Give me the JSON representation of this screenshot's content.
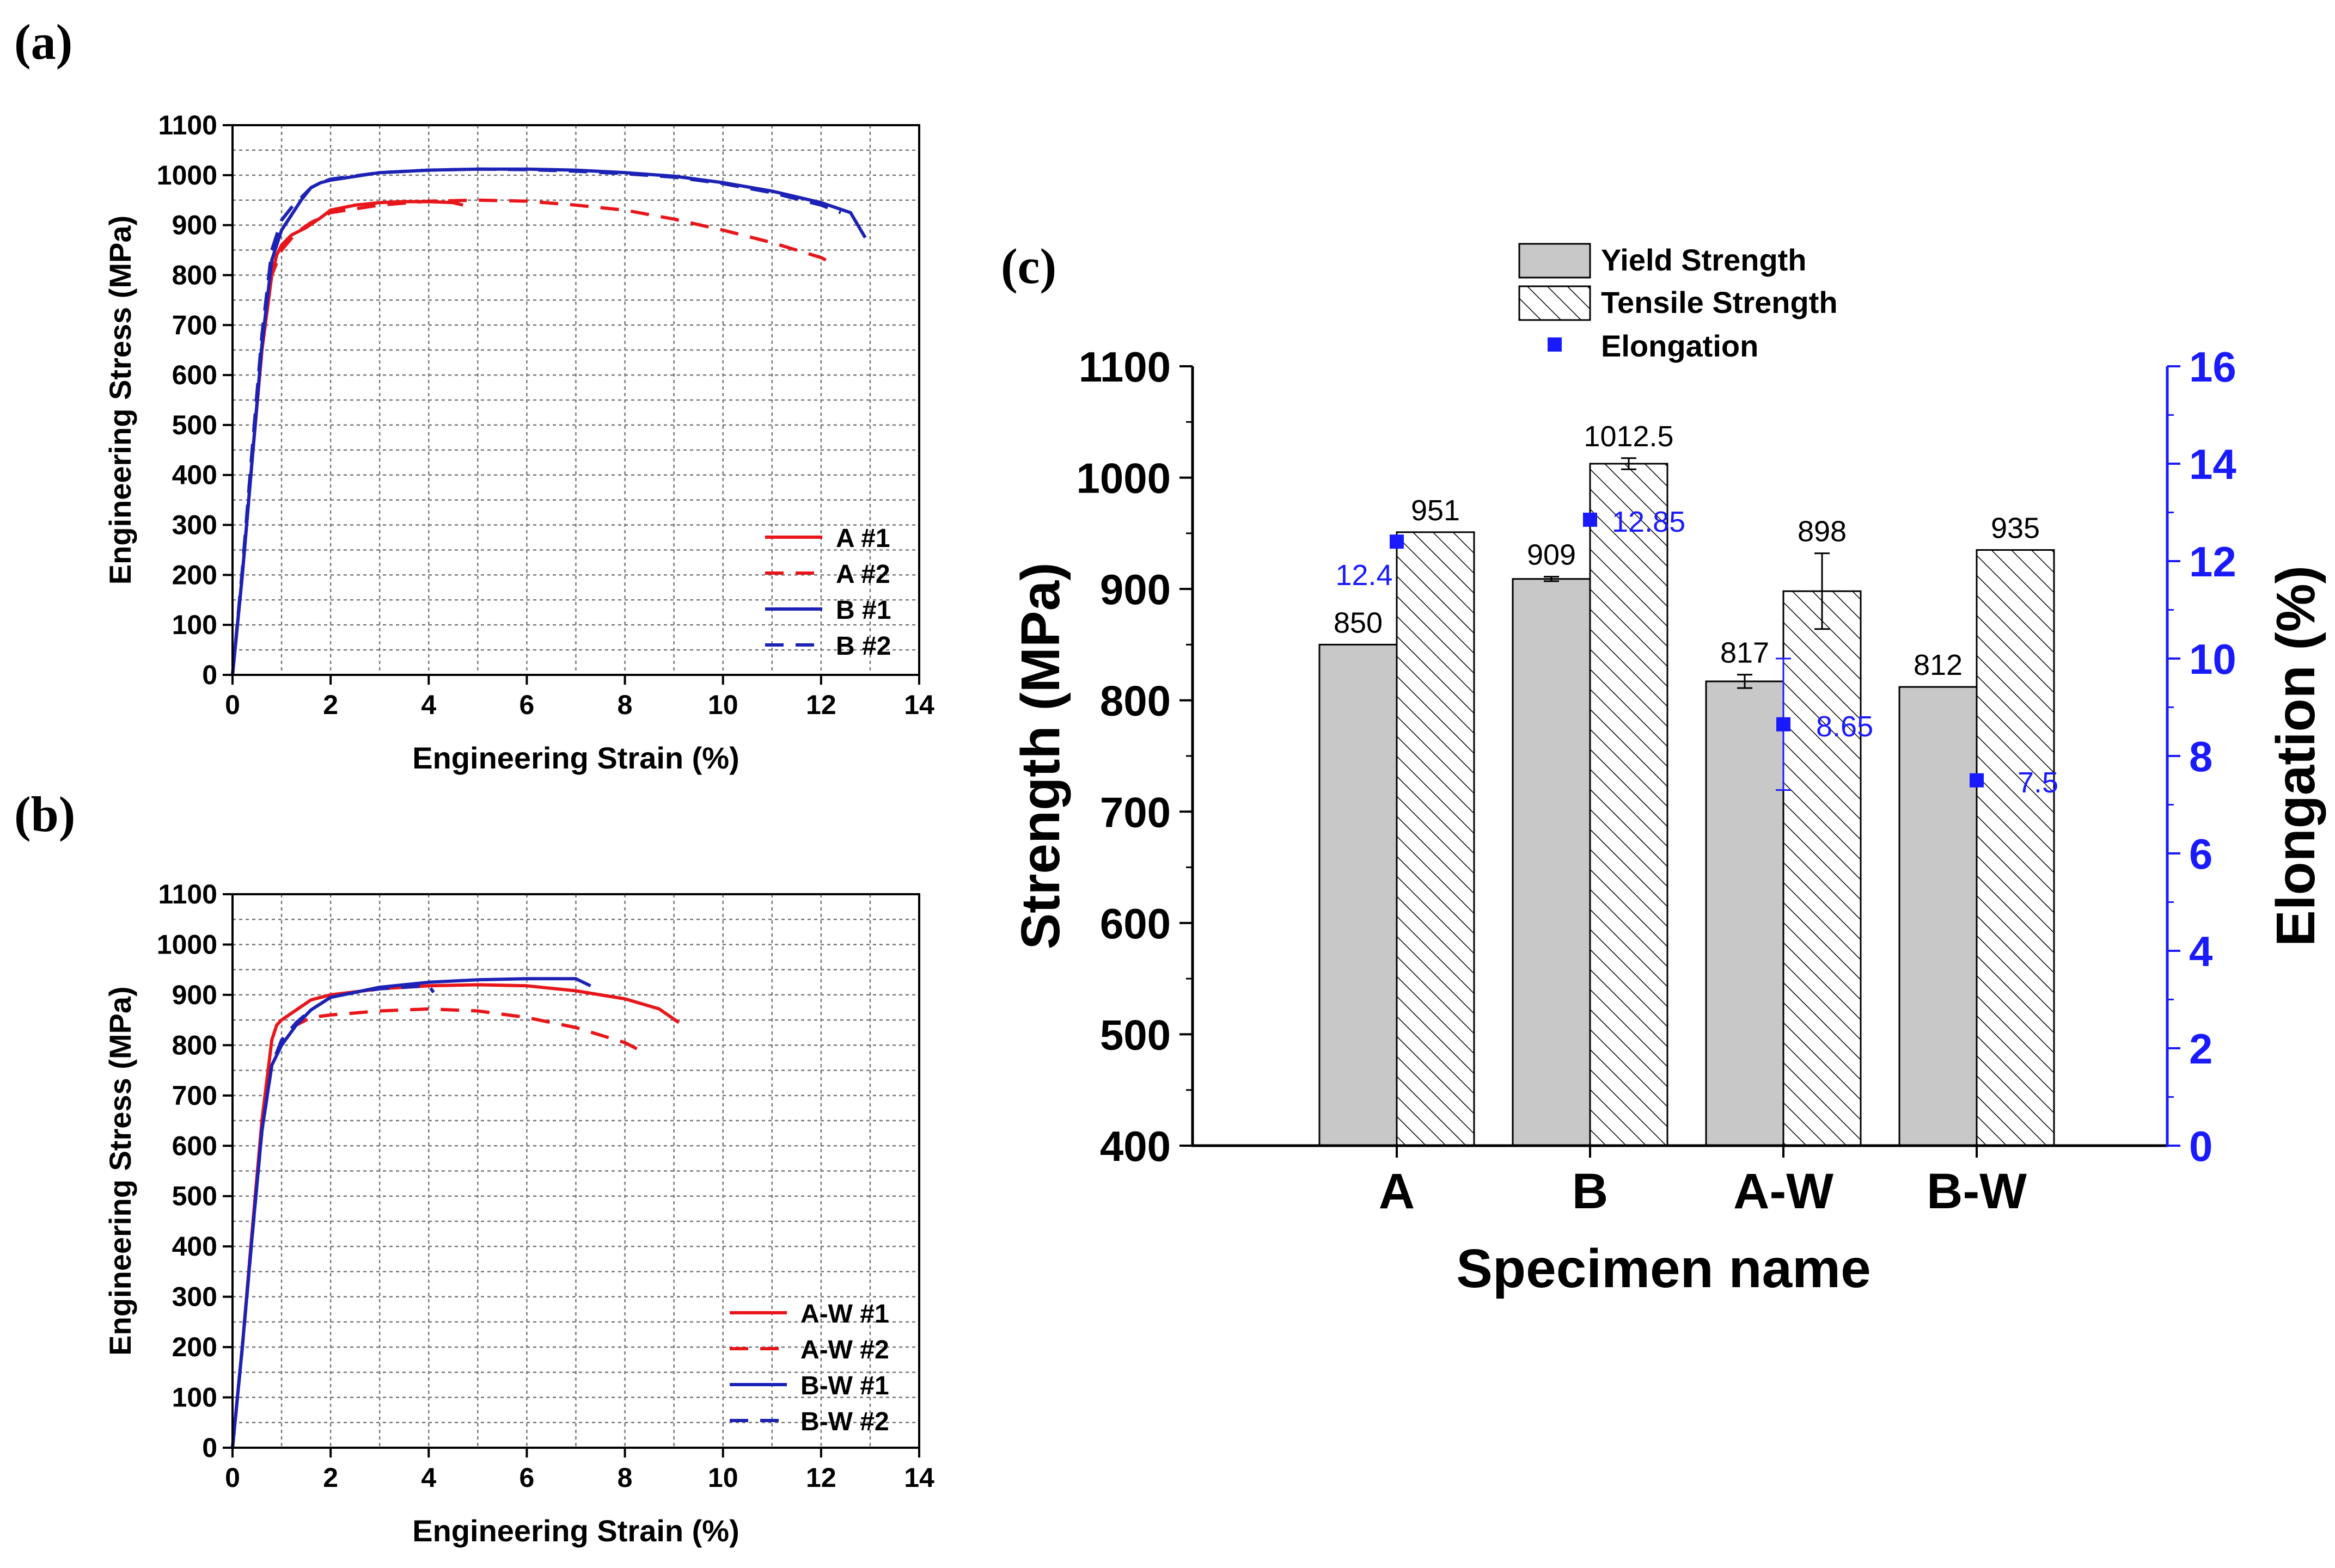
{
  "colors": {
    "red": "#e8161b",
    "blue": "#1c22b5",
    "gray_bar": "#c8c8c8",
    "elong": "#1a1aff",
    "elong_axis": "#1a1aff"
  },
  "chart_data": [
    {
      "id": "a",
      "panel_label": "(a)",
      "type": "line",
      "xlabel": "Engineering Strain (%)",
      "ylabel": "Engineering Stress (MPa)",
      "xlim": [
        0,
        14
      ],
      "ylim": [
        0,
        1100
      ],
      "xticks": [
        0,
        2,
        4,
        6,
        8,
        10,
        12,
        14
      ],
      "yticks": [
        0,
        100,
        200,
        300,
        400,
        500,
        600,
        700,
        800,
        900,
        1000,
        1100
      ],
      "grid": true,
      "legend_position": "bottom-right",
      "series": [
        {
          "name": "A #1",
          "color": "red",
          "dash": false,
          "x": [
            0,
            0.2,
            0.4,
            0.6,
            0.8,
            0.9,
            1.0,
            1.2,
            1.5,
            1.8,
            2.0,
            2.5,
            3.0,
            3.5,
            4.0,
            4.5,
            4.7
          ],
          "y": [
            0,
            200,
            430,
            650,
            800,
            840,
            860,
            880,
            895,
            915,
            930,
            940,
            945,
            947,
            947,
            945,
            940
          ]
        },
        {
          "name": "A #2",
          "color": "red",
          "dash": true,
          "x": [
            0,
            0.2,
            0.4,
            0.6,
            0.8,
            1.0,
            1.3,
            1.6,
            2.0,
            3.0,
            4.0,
            5.0,
            6.0,
            7.0,
            8.0,
            9.0,
            10.0,
            11.0,
            12.0,
            12.3
          ],
          "y": [
            0,
            200,
            430,
            650,
            800,
            850,
            885,
            905,
            925,
            940,
            948,
            950,
            948,
            940,
            930,
            912,
            890,
            865,
            835,
            820
          ]
        },
        {
          "name": "B #1",
          "color": "blue",
          "dash": false,
          "x": [
            0,
            0.2,
            0.4,
            0.6,
            0.8,
            1.0,
            1.2,
            1.4,
            1.6,
            1.8,
            2.0,
            3.0,
            4.0,
            5.0,
            6.0,
            7.0,
            8.0,
            9.0,
            10.0,
            11.0,
            12.0,
            12.6,
            12.9
          ],
          "y": [
            0,
            200,
            430,
            660,
            830,
            890,
            920,
            950,
            975,
            985,
            990,
            1005,
            1010,
            1012,
            1012,
            1010,
            1005,
            998,
            985,
            968,
            945,
            925,
            875
          ]
        },
        {
          "name": "B #2",
          "color": "blue",
          "dash": true,
          "x": [
            0,
            0.2,
            0.4,
            0.6,
            0.8,
            1.0,
            1.2,
            1.4,
            1.6,
            1.8,
            2.0,
            3.0,
            4.0,
            5.0,
            6.0,
            7.0,
            8.0,
            9.0,
            10.0,
            11.0,
            12.0,
            12.4
          ],
          "y": [
            0,
            210,
            450,
            680,
            850,
            910,
            935,
            955,
            975,
            985,
            992,
            1005,
            1010,
            1012,
            1011,
            1008,
            1003,
            996,
            983,
            965,
            940,
            925
          ]
        }
      ]
    },
    {
      "id": "b",
      "panel_label": "(b)",
      "type": "line",
      "xlabel": "Engineering Strain (%)",
      "ylabel": "Engineering Stress (MPa)",
      "xlim": [
        0,
        14
      ],
      "ylim": [
        0,
        1100
      ],
      "xticks": [
        0,
        2,
        4,
        6,
        8,
        10,
        12,
        14
      ],
      "yticks": [
        0,
        100,
        200,
        300,
        400,
        500,
        600,
        700,
        800,
        900,
        1000,
        1100
      ],
      "grid": true,
      "legend_position": "bottom-right",
      "series": [
        {
          "name": "A-W #1",
          "color": "red",
          "dash": false,
          "x": [
            0,
            0.2,
            0.4,
            0.6,
            0.8,
            0.9,
            1.0,
            1.3,
            1.6,
            2.0,
            3.0,
            4.0,
            5.0,
            6.0,
            7.0,
            8.0,
            8.7,
            9.1
          ],
          "y": [
            0,
            200,
            430,
            650,
            810,
            840,
            850,
            870,
            890,
            900,
            912,
            918,
            920,
            918,
            908,
            892,
            872,
            845
          ]
        },
        {
          "name": "A-W #2",
          "color": "red",
          "dash": true,
          "x": [
            0,
            0.2,
            0.4,
            0.6,
            0.8,
            1.0,
            1.3,
            1.6,
            2.0,
            3.0,
            4.0,
            5.0,
            6.0,
            7.0,
            8.0,
            8.3
          ],
          "y": [
            0,
            200,
            420,
            630,
            760,
            810,
            840,
            855,
            860,
            868,
            872,
            868,
            855,
            835,
            805,
            790
          ]
        },
        {
          "name": "B-W #1",
          "color": "blue",
          "dash": false,
          "x": [
            0,
            0.2,
            0.4,
            0.6,
            0.8,
            1.0,
            1.3,
            1.6,
            2.0,
            3.0,
            4.0,
            5.0,
            6.0,
            7.0,
            7.3
          ],
          "y": [
            0,
            200,
            420,
            630,
            760,
            800,
            840,
            870,
            895,
            915,
            925,
            930,
            932,
            932,
            918
          ]
        },
        {
          "name": "B-W #2",
          "color": "blue",
          "dash": true,
          "x": [
            0,
            0.2,
            0.4,
            0.6,
            0.8,
            1.0,
            1.3,
            1.6,
            2.0,
            2.5,
            3.0,
            3.5,
            4.0,
            4.1
          ],
          "y": [
            0,
            200,
            420,
            630,
            760,
            810,
            845,
            870,
            895,
            905,
            912,
            915,
            918,
            905
          ]
        }
      ]
    },
    {
      "id": "c",
      "panel_label": "(c)",
      "type": "bar",
      "categories": [
        "A",
        "B",
        "A-W",
        "B-W"
      ],
      "xlabel": "Specimen name",
      "ylabel": "Strength (MPa)",
      "y2label": "Elongation (%)",
      "ylim": [
        400,
        1100
      ],
      "yticks": [
        400,
        500,
        600,
        700,
        800,
        900,
        1000,
        1100
      ],
      "y2lim": [
        0,
        16
      ],
      "y2ticks": [
        0,
        2,
        4,
        6,
        8,
        10,
        12,
        14,
        16
      ],
      "legend_position": "top-center",
      "series": [
        {
          "name": "Yield Strength",
          "pattern": "solid-gray",
          "values": [
            850,
            909,
            817,
            812
          ],
          "labels": [
            "850",
            "909",
            "817",
            "812"
          ],
          "errors": [
            0,
            2,
            6,
            0
          ]
        },
        {
          "name": "Tensile Strength",
          "pattern": "hatched",
          "values": [
            951,
            1012.5,
            898,
            935
          ],
          "labels": [
            "951",
            "1012.5",
            "898",
            "935"
          ],
          "errors": [
            0,
            5,
            34,
            0
          ]
        },
        {
          "name": "Elongation",
          "axis": "right",
          "marker": "square",
          "values": [
            12.4,
            12.85,
            8.65,
            7.5
          ],
          "labels": [
            "12.4",
            "12.85",
            "8.65",
            "7.5"
          ],
          "errors": [
            0,
            0,
            1.35,
            0
          ]
        }
      ]
    }
  ]
}
